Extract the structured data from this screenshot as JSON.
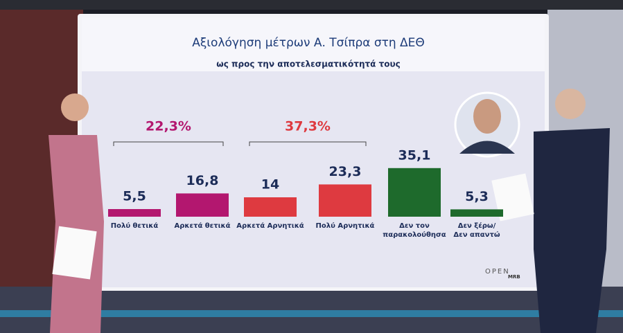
{
  "chart_data": {
    "type": "bar",
    "title": "Αξιολόγηση μέτρων Α. Τσίπρα στη ΔΕΘ",
    "subtitle": "ως προς την αποτελεσματικότητά τους",
    "categories": [
      [
        "Πολύ θετικά"
      ],
      [
        "Αρκετά θετικά"
      ],
      [
        "Αρκετά Αρνητικά"
      ],
      [
        "Πολύ Αρνητικά"
      ],
      [
        "Δεν τον",
        "παρακολούθησα"
      ],
      [
        "Δεν ξέρω/",
        "Δεν απαντώ"
      ]
    ],
    "values": [
      5.5,
      16.8,
      14,
      23.3,
      35.1,
      5.3
    ],
    "value_labels": [
      "5,5",
      "16,8",
      "14",
      "23,3",
      "35,1",
      "5,3"
    ],
    "colors": [
      "#b3176f",
      "#b3176f",
      "#de3a40",
      "#de3a40",
      "#1e6a2c",
      "#1e6a2c"
    ],
    "ylim": [
      0,
      40
    ],
    "group_totals": [
      {
        "value": 22.3,
        "label": "22,3%",
        "from": 0,
        "to": 1,
        "color": "#b3176f"
      },
      {
        "value": 37.3,
        "label": "37,3%",
        "from": 2,
        "to": 3,
        "color": "#de3a40"
      }
    ],
    "logos": [
      "OPEN",
      "MRB"
    ]
  }
}
